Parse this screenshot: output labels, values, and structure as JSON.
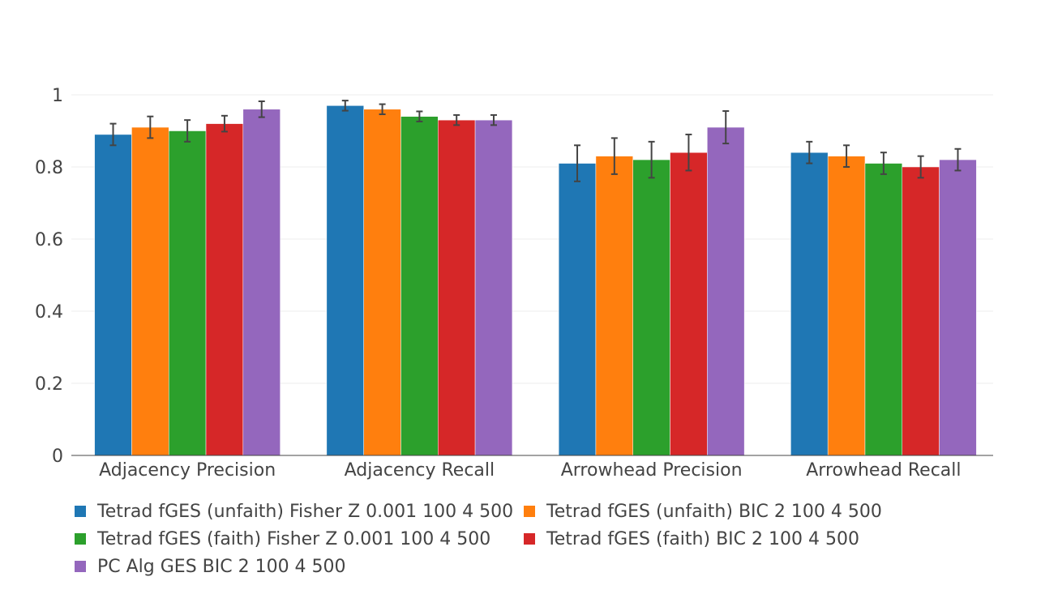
{
  "chart_data": {
    "type": "bar",
    "categories": [
      "Adjacency Precision",
      "Adjacency Recall",
      "Arrowhead Precision",
      "Arrowhead Recall"
    ],
    "ylim": [
      0,
      1
    ],
    "yticks": [
      0,
      0.2,
      0.4,
      0.6,
      0.8,
      1
    ],
    "ytick_labels": [
      "0",
      "0.2",
      "0.4",
      "0.6",
      "0.8",
      "1"
    ],
    "grid": true,
    "legend_position": "bottom",
    "series": [
      {
        "name": "Tetrad fGES (unfaith) Fisher Z 0.001 100 4 500",
        "color": "#1f77b4",
        "values": [
          0.89,
          0.97,
          0.81,
          0.84
        ],
        "errors": [
          0.03,
          0.014,
          0.05,
          0.03
        ]
      },
      {
        "name": "Tetrad fGES (unfaith) BIC 2 100 4 500",
        "color": "#ff7f0e",
        "values": [
          0.91,
          0.96,
          0.83,
          0.83
        ],
        "errors": [
          0.03,
          0.014,
          0.05,
          0.03
        ]
      },
      {
        "name": "Tetrad fGES (faith) Fisher Z 0.001 100 4 500",
        "color": "#2ca02c",
        "values": [
          0.9,
          0.94,
          0.82,
          0.81
        ],
        "errors": [
          0.03,
          0.014,
          0.05,
          0.03
        ]
      },
      {
        "name": "Tetrad fGES (faith) BIC 2 100 4 500",
        "color": "#d62728",
        "values": [
          0.92,
          0.93,
          0.84,
          0.8
        ],
        "errors": [
          0.022,
          0.014,
          0.05,
          0.03
        ]
      },
      {
        "name": "PC Alg GES BIC 2 100 4 500",
        "color": "#9467bd",
        "values": [
          0.96,
          0.93,
          0.91,
          0.82
        ],
        "errors": [
          0.022,
          0.014,
          0.045,
          0.03
        ]
      }
    ]
  }
}
